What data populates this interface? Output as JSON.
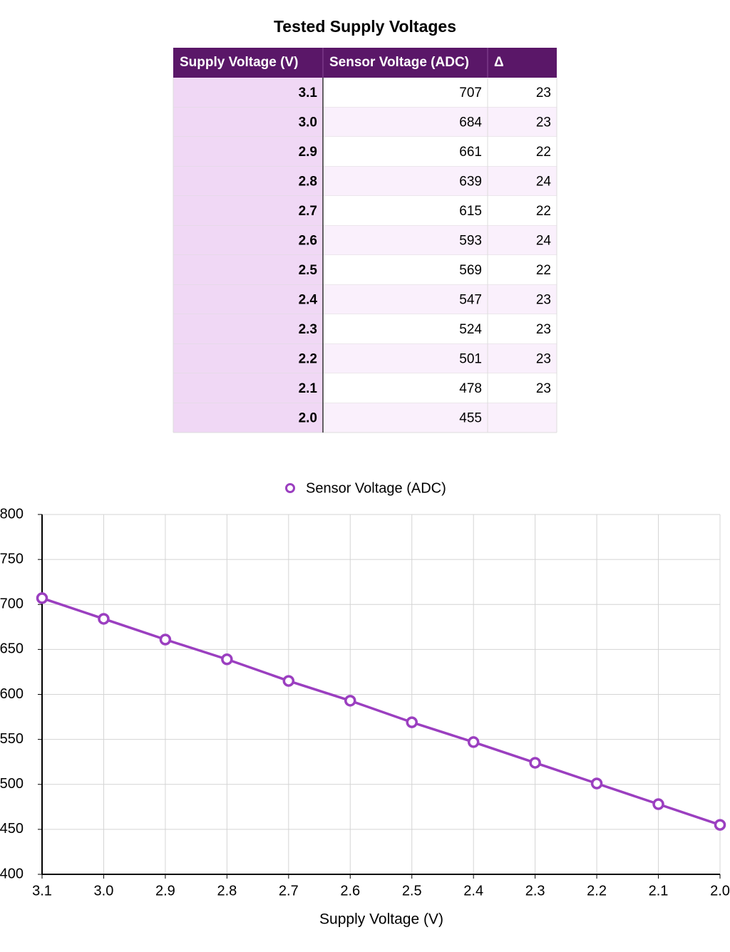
{
  "table": {
    "title": "Tested Supply Voltages",
    "columns": [
      "Supply Voltage (V)",
      "Sensor Voltage (ADC)",
      "Δ"
    ],
    "rows": [
      [
        "3.1",
        "707",
        "23"
      ],
      [
        "3.0",
        "684",
        "23"
      ],
      [
        "2.9",
        "661",
        "22"
      ],
      [
        "2.8",
        "639",
        "24"
      ],
      [
        "2.7",
        "615",
        "22"
      ],
      [
        "2.6",
        "593",
        "24"
      ],
      [
        "2.5",
        "569",
        "22"
      ],
      [
        "2.4",
        "547",
        "23"
      ],
      [
        "2.3",
        "524",
        "23"
      ],
      [
        "2.2",
        "501",
        "23"
      ],
      [
        "2.1",
        "478",
        "23"
      ],
      [
        "2.0",
        "455"
      ]
    ]
  },
  "chart_data": {
    "type": "line",
    "x_label": "Supply Voltage (V)",
    "x": [
      3.1,
      3.0,
      2.9,
      2.8,
      2.7,
      2.6,
      2.5,
      2.4,
      2.3,
      2.2,
      2.1,
      2.0
    ],
    "series": [
      {
        "name": "Sensor Voltage (ADC)",
        "color": "#9b3fc0",
        "values": [
          707,
          684,
          661,
          639,
          615,
          593,
          569,
          547,
          524,
          501,
          478,
          455
        ]
      }
    ],
    "xlim": [
      3.1,
      2.0
    ],
    "xticks": [
      3.1,
      {
        "value": 3.0,
        "label": "3.0"
      },
      2.9,
      2.8,
      2.7,
      2.6,
      2.5,
      2.4,
      2.3,
      2.2,
      2.1,
      {
        "value": 2.0,
        "label": "2.0"
      }
    ],
    "ylim": [
      400,
      800
    ],
    "yticks": [
      400,
      450,
      500,
      550,
      600,
      650,
      700,
      750,
      800
    ],
    "grid": true,
    "legend": "top"
  }
}
